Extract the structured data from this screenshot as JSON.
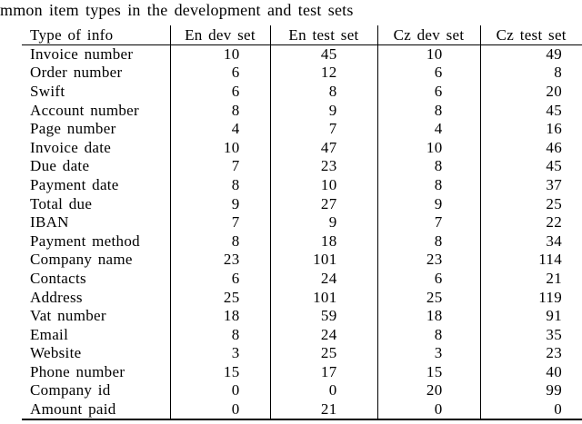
{
  "caption": "mmon item types in the development and test sets",
  "table": {
    "columns": [
      "Type of info",
      "En dev set",
      "En test set",
      "Cz dev set",
      "Cz test set"
    ],
    "rows": [
      [
        "Invoice number",
        10,
        45,
        10,
        49
      ],
      [
        "Order number",
        6,
        12,
        6,
        8
      ],
      [
        "Swift",
        6,
        8,
        6,
        20
      ],
      [
        "Account number",
        8,
        9,
        8,
        45
      ],
      [
        "Page number",
        4,
        7,
        4,
        16
      ],
      [
        "Invoice date",
        10,
        47,
        10,
        46
      ],
      [
        "Due date",
        7,
        23,
        8,
        45
      ],
      [
        "Payment date",
        8,
        10,
        8,
        37
      ],
      [
        "Total due",
        9,
        27,
        9,
        25
      ],
      [
        "IBAN",
        7,
        9,
        7,
        22
      ],
      [
        "Payment method",
        8,
        18,
        8,
        34
      ],
      [
        "Company name",
        23,
        101,
        23,
        114
      ],
      [
        "Contacts",
        6,
        24,
        6,
        21
      ],
      [
        "Address",
        25,
        101,
        25,
        119
      ],
      [
        "Vat number",
        18,
        59,
        18,
        91
      ],
      [
        "Email",
        8,
        24,
        8,
        35
      ],
      [
        "Website",
        3,
        25,
        3,
        23
      ],
      [
        "Phone number",
        15,
        17,
        15,
        40
      ],
      [
        "Company id",
        0,
        0,
        20,
        99
      ],
      [
        "Amount paid",
        0,
        21,
        0,
        0
      ]
    ]
  }
}
